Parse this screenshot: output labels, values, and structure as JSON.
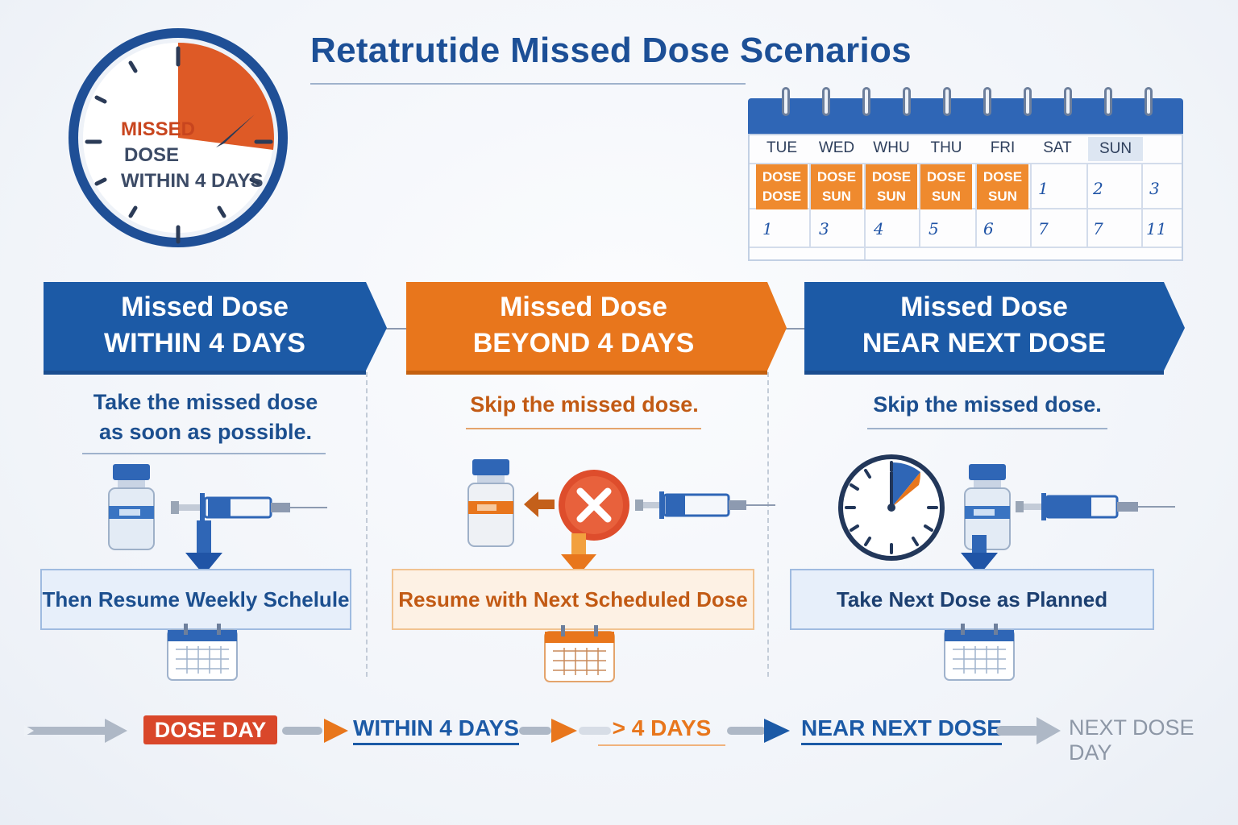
{
  "title": "Retatrutide Missed Dose Scenarios",
  "clock": {
    "line1": "MISSED",
    "line2": "DOSE",
    "line3": "WITHIN 4 DAYS"
  },
  "calendar": {
    "days": [
      "TUE",
      "WED",
      "WHU",
      "THU",
      "FRI",
      "SAT",
      "SUN"
    ],
    "dose_cells": [
      {
        "top": "DOSE",
        "bottom": "DOSE"
      },
      {
        "top": "DOSE",
        "bottom": "SUN"
      },
      {
        "top": "DOSE",
        "bottom": "SUN"
      },
      {
        "top": "DOSE",
        "bottom": "SUN"
      },
      {
        "top": "DOSE",
        "bottom": "SUN"
      }
    ],
    "row1_numbers": [
      "1",
      "2",
      "3"
    ],
    "row2_numbers": [
      "1",
      "3",
      "4",
      "5",
      "6",
      "7",
      "7",
      "11"
    ]
  },
  "scenarios": [
    {
      "heading1": "Missed Dose",
      "heading2": "WITHIN 4 DAYS",
      "instruction1": "Take the missed dose",
      "instruction2": "as soon as possible.",
      "result": "Then Resume Weekly Schelule",
      "color": "#1c5aa6"
    },
    {
      "heading1": "Missed Dose",
      "heading2": "BEYOND 4 DAYS",
      "instruction1": "Skip the missed dose.",
      "instruction2": "",
      "result": "Resume with Next Scheduled Dose",
      "color": "#e8761c"
    },
    {
      "heading1": "Missed Dose",
      "heading2": "NEAR NEXT DOSE",
      "instruction1": "Skip the missed dose.",
      "instruction2": "",
      "result": "Take Next Dose as Planned",
      "color": "#1c5aa6"
    }
  ],
  "timeline": {
    "dose_day": "DOSE DAY",
    "within": "WITHIN 4 DAYS",
    "beyond": "> 4 DAYS",
    "near": "NEAR NEXT DOSE",
    "next": "NEXT DOSE DAY"
  },
  "colors": {
    "blue": "#1c5aa6",
    "orange": "#e8761c",
    "red": "#d9472a",
    "grey": "#9aa6b6"
  },
  "icons": [
    "clock-icon",
    "calendar-icon",
    "vial-icon",
    "syringe-icon",
    "cross-icon",
    "arrow-down-icon",
    "arrow-right-icon"
  ]
}
